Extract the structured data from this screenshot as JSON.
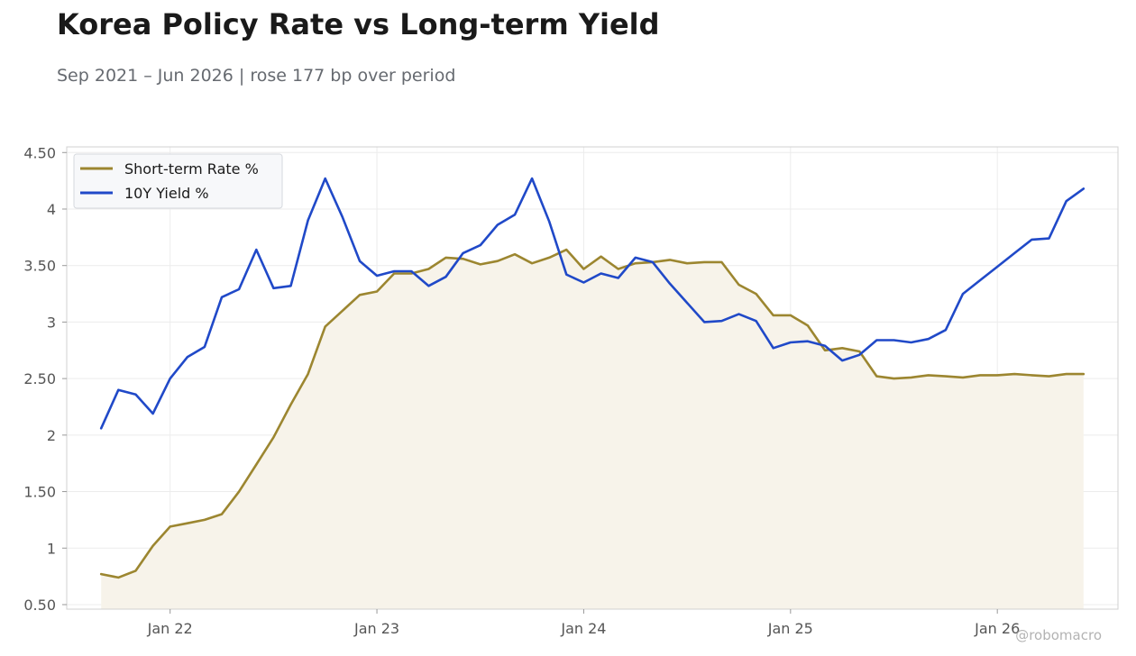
{
  "header": {
    "title": "Korea Policy Rate vs Long-term Yield",
    "subtitle": "Sep 2021 – Jun 2026 | rose 177 bp over period"
  },
  "watermark": "@robomacro",
  "colors": {
    "short_rate": "#9c8630",
    "yield_10y": "#2049c8",
    "fill": "#f7f3ea",
    "grid": "#ececec",
    "axis": "#d0d0d0"
  },
  "chart_data": {
    "type": "line",
    "title": "Korea Policy Rate vs Long-term Yield",
    "subtitle": "Sep 2021 – Jun 2026 | rose 177 bp over period",
    "xlabel": "",
    "ylabel": "",
    "ylim": [
      0.46,
      4.55
    ],
    "xlim": [
      "2021-07",
      "2026-08"
    ],
    "x_ticks": [
      {
        "label": "Jan 22",
        "date": "2022-01"
      },
      {
        "label": "Jan 23",
        "date": "2023-01"
      },
      {
        "label": "Jan 24",
        "date": "2024-01"
      },
      {
        "label": "Jan 25",
        "date": "2025-01"
      },
      {
        "label": "Jan 26",
        "date": "2026-01"
      }
    ],
    "y_ticks": [
      {
        "label": "0.50",
        "value": 0.5
      },
      {
        "label": "1",
        "value": 1
      },
      {
        "label": "1.50",
        "value": 1.5
      },
      {
        "label": "2",
        "value": 2
      },
      {
        "label": "2.50",
        "value": 2.5
      },
      {
        "label": "3",
        "value": 3
      },
      {
        "label": "3.50",
        "value": 3.5
      },
      {
        "label": "4",
        "value": 4
      },
      {
        "label": "4.50",
        "value": 4.5
      }
    ],
    "grid": true,
    "legend_position": "top-left",
    "x": [
      "2021-09",
      "2021-10",
      "2021-11",
      "2021-12",
      "2022-01",
      "2022-02",
      "2022-03",
      "2022-04",
      "2022-05",
      "2022-06",
      "2022-07",
      "2022-08",
      "2022-09",
      "2022-10",
      "2022-11",
      "2022-12",
      "2023-01",
      "2023-02",
      "2023-03",
      "2023-04",
      "2023-05",
      "2023-06",
      "2023-07",
      "2023-08",
      "2023-09",
      "2023-10",
      "2023-11",
      "2023-12",
      "2024-01",
      "2024-02",
      "2024-03",
      "2024-04",
      "2024-05",
      "2024-06",
      "2024-07",
      "2024-08",
      "2024-09",
      "2024-10",
      "2024-11",
      "2024-12",
      "2025-01",
      "2025-02",
      "2025-03",
      "2025-04",
      "2025-05",
      "2025-06",
      "2025-07",
      "2025-08",
      "2025-09",
      "2025-10",
      "2025-11",
      "2025-12",
      "2026-01",
      "2026-02",
      "2026-03",
      "2026-04",
      "2026-05",
      "2026-06"
    ],
    "series": [
      {
        "name": "Short-term Rate %",
        "color": "#9c8630",
        "fill": true,
        "values": [
          0.77,
          0.74,
          0.8,
          1.02,
          1.19,
          1.22,
          1.25,
          1.3,
          1.5,
          1.74,
          1.98,
          2.27,
          2.54,
          2.96,
          3.1,
          3.24,
          3.27,
          3.43,
          3.43,
          3.47,
          3.57,
          3.56,
          3.51,
          3.54,
          3.6,
          3.52,
          3.57,
          3.64,
          3.47,
          3.58,
          3.47,
          3.52,
          3.53,
          3.55,
          3.52,
          3.53,
          3.53,
          3.33,
          3.25,
          3.06,
          3.06,
          2.97,
          2.75,
          2.77,
          2.74,
          2.52,
          2.5,
          2.51,
          2.53,
          2.52,
          2.51,
          2.53,
          2.53,
          2.54,
          2.53,
          2.52,
          2.54,
          2.54
        ]
      },
      {
        "name": "10Y Yield %",
        "color": "#2049c8",
        "fill": false,
        "values": [
          2.06,
          2.4,
          2.36,
          2.19,
          2.5,
          2.69,
          2.78,
          3.22,
          3.29,
          3.64,
          3.3,
          3.32,
          3.9,
          4.27,
          3.93,
          3.54,
          3.41,
          3.45,
          3.45,
          3.32,
          3.4,
          3.61,
          3.68,
          3.86,
          3.95,
          4.27,
          3.89,
          3.42,
          3.35,
          3.43,
          3.39,
          3.57,
          3.53,
          3.34,
          3.17,
          3.0,
          3.01,
          3.07,
          3.01,
          2.77,
          2.82,
          2.83,
          2.79,
          2.66,
          2.71,
          2.84,
          2.84,
          2.82,
          2.85,
          2.93,
          3.25,
          3.37,
          3.49,
          3.61,
          3.73,
          3.74,
          4.07,
          4.18
        ]
      }
    ]
  }
}
